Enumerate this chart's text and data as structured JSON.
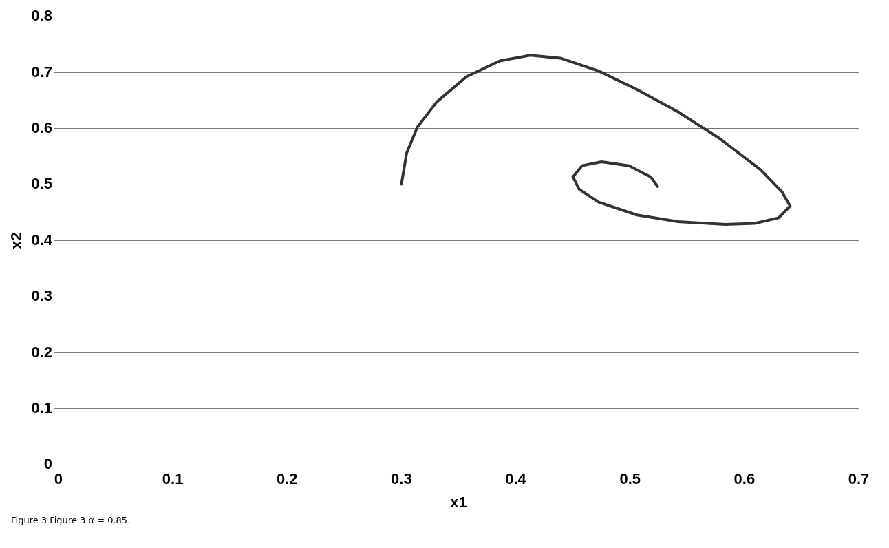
{
  "chart_data": {
    "type": "line",
    "xlabel": "x1",
    "ylabel": "x2",
    "xlim": [
      0,
      0.7
    ],
    "xticks": [
      0,
      0.1,
      0.2,
      0.3,
      0.4,
      0.5,
      0.6,
      0.7
    ],
    "ylim": [
      0,
      0.8
    ],
    "yticks": [
      0,
      0.1,
      0.2,
      0.3,
      0.4,
      0.5,
      0.6,
      0.7,
      0.8
    ],
    "grid": "y",
    "legend": false,
    "marker": "none",
    "line_style": "solid",
    "annotations": [
      "Figure 3 Figure 3 α = 0.85."
    ],
    "series": [
      {
        "color": "#333333",
        "x": [
          0.3,
          0.3046,
          0.314,
          0.331,
          0.357,
          0.386,
          0.4125,
          0.439,
          0.4725,
          0.506,
          0.542,
          0.578,
          0.614,
          0.633,
          0.64,
          0.63,
          0.609,
          0.583,
          0.542,
          0.506,
          0.4725,
          0.4555,
          0.45,
          0.458,
          0.475,
          0.499,
          0.518,
          0.524
        ],
        "values": [
          0.501,
          0.557,
          0.603,
          0.648,
          0.693,
          0.721,
          0.731,
          0.726,
          0.703,
          0.67,
          0.63,
          0.583,
          0.527,
          0.487,
          0.462,
          0.441,
          0.431,
          0.429,
          0.434,
          0.446,
          0.469,
          0.492,
          0.514,
          0.534,
          0.541,
          0.534,
          0.514,
          0.497
        ]
      }
    ]
  }
}
